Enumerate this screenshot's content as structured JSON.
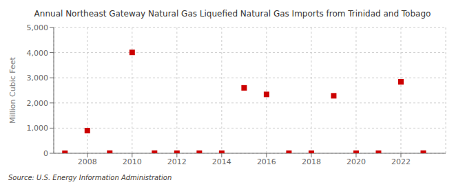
{
  "chart_data": {
    "type": "scatter",
    "title": "Annual Northeast Gateway Natural Gas Liquefied Natural Gas Imports from Trinidad and Tobago",
    "ylabel": "Million Cubic Feet",
    "source": "Source: U.S. Energy Information Administration",
    "color": "#cc0000",
    "marker": "square",
    "x": [
      2007,
      2008,
      2009,
      2010,
      2011,
      2012,
      2013,
      2014,
      2015,
      2016,
      2017,
      2018,
      2019,
      2020,
      2021,
      2022,
      2023
    ],
    "values": [
      0,
      900,
      5,
      4010,
      5,
      3,
      3,
      3,
      2600,
      2340,
      3,
      3,
      2285,
      3,
      3,
      2840,
      5
    ],
    "xlim": [
      2006.5,
      2024.0
    ],
    "ylim": [
      0,
      5000
    ],
    "xticks": [
      2008,
      2010,
      2012,
      2014,
      2016,
      2018,
      2020,
      2022
    ],
    "yticks": [
      0,
      {
        "value": 1000,
        "label": "1,000"
      },
      {
        "value": 2000,
        "label": "2,000"
      },
      {
        "value": 3000,
        "label": "3,000"
      },
      {
        "value": 4000,
        "label": "4,000"
      },
      {
        "value": 5000,
        "label": "5,000"
      }
    ],
    "grid": true
  }
}
